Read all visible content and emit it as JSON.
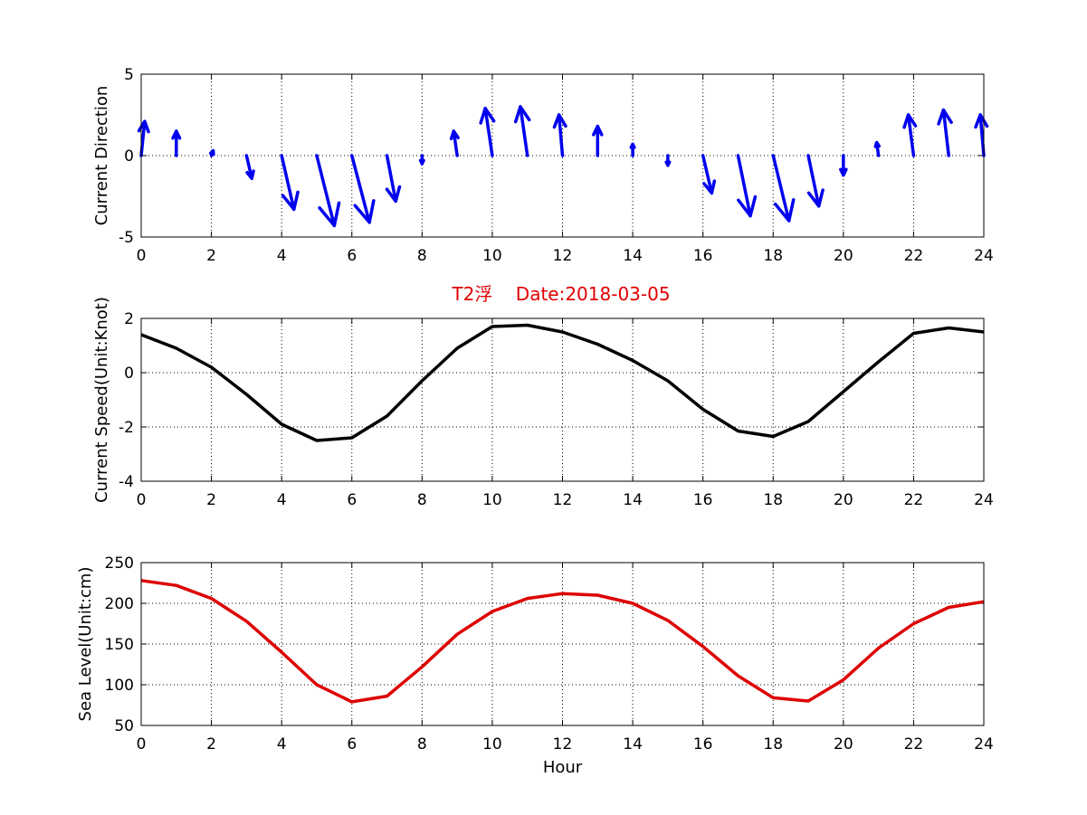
{
  "title": "T2浮    Date:2018-03-05",
  "colors": {
    "arrows": "#0000ee",
    "speed": "#000000",
    "sealevel": "#dd0000",
    "title": "#e00000"
  },
  "chart_data": [
    {
      "type": "quiver",
      "ylabel": "Current Direction",
      "xlabel": "",
      "xlim": [
        0,
        24
      ],
      "ylim": [
        -5,
        5
      ],
      "xticks": [
        "0",
        "2",
        "4",
        "6",
        "8",
        "10",
        "12",
        "14",
        "16",
        "18",
        "20",
        "22",
        "24"
      ],
      "yticks": [
        "-5",
        "0",
        "5"
      ],
      "grid": true,
      "arrows": [
        {
          "x": 0,
          "u": 0.1,
          "v": 2.1
        },
        {
          "x": 1,
          "u": 0.0,
          "v": 1.5
        },
        {
          "x": 2,
          "u": 0.05,
          "v": 0.3
        },
        {
          "x": 3,
          "u": 0.15,
          "v": -1.4
        },
        {
          "x": 4,
          "u": 0.35,
          "v": -3.3
        },
        {
          "x": 5,
          "u": 0.5,
          "v": -4.3
        },
        {
          "x": 6,
          "u": 0.5,
          "v": -4.1
        },
        {
          "x": 7,
          "u": 0.25,
          "v": -2.8
        },
        {
          "x": 8,
          "u": 0.0,
          "v": -0.5
        },
        {
          "x": 9,
          "u": -0.1,
          "v": 1.5
        },
        {
          "x": 10,
          "u": -0.2,
          "v": 2.9
        },
        {
          "x": 11,
          "u": -0.2,
          "v": 3.0
        },
        {
          "x": 12,
          "u": -0.1,
          "v": 2.5
        },
        {
          "x": 13,
          "u": 0.0,
          "v": 1.8
        },
        {
          "x": 14,
          "u": 0.0,
          "v": 0.7
        },
        {
          "x": 15,
          "u": 0.0,
          "v": -0.6
        },
        {
          "x": 16,
          "u": 0.25,
          "v": -2.3
        },
        {
          "x": 17,
          "u": 0.35,
          "v": -3.7
        },
        {
          "x": 18,
          "u": 0.45,
          "v": -4.0
        },
        {
          "x": 19,
          "u": 0.3,
          "v": -3.1
        },
        {
          "x": 20,
          "u": 0.0,
          "v": -1.2
        },
        {
          "x": 21,
          "u": -0.05,
          "v": 0.8
        },
        {
          "x": 22,
          "u": -0.15,
          "v": 2.5
        },
        {
          "x": 23,
          "u": -0.15,
          "v": 2.8
        },
        {
          "x": 24,
          "u": -0.1,
          "v": 2.5
        }
      ]
    },
    {
      "type": "line",
      "ylabel": "Current Speed(Unit:Knot)",
      "xlabel": "",
      "xlim": [
        0,
        24
      ],
      "ylim": [
        -4,
        2
      ],
      "xticks": [
        "0",
        "2",
        "4",
        "6",
        "8",
        "10",
        "12",
        "14",
        "16",
        "18",
        "20",
        "22",
        "24"
      ],
      "yticks": [
        "-4",
        "-2",
        "0",
        "2"
      ],
      "grid": true,
      "x": [
        0,
        1,
        2,
        3,
        4,
        5,
        6,
        7,
        8,
        9,
        10,
        11,
        12,
        13,
        14,
        15,
        16,
        17,
        18,
        19,
        20,
        21,
        22,
        23,
        24
      ],
      "series": [
        {
          "values": [
            1.4,
            0.9,
            0.2,
            -0.8,
            -1.9,
            -2.5,
            -2.4,
            -1.6,
            -0.3,
            0.9,
            1.7,
            1.75,
            1.5,
            1.05,
            0.45,
            -0.3,
            -1.35,
            -2.15,
            -2.35,
            -1.8,
            -0.7,
            0.4,
            1.45,
            1.65,
            1.5
          ]
        }
      ]
    },
    {
      "type": "line",
      "ylabel": "Sea Level(Unit:cm)",
      "xlabel": "Hour",
      "xlim": [
        0,
        24
      ],
      "ylim": [
        50,
        250
      ],
      "xticks": [
        "0",
        "2",
        "4",
        "6",
        "8",
        "10",
        "12",
        "14",
        "16",
        "18",
        "20",
        "22",
        "24"
      ],
      "yticks": [
        "50",
        "100",
        "150",
        "200",
        "250"
      ],
      "grid": true,
      "x": [
        0,
        1,
        2,
        3,
        4,
        5,
        6,
        7,
        8,
        9,
        10,
        11,
        12,
        13,
        14,
        15,
        16,
        17,
        18,
        19,
        20,
        21,
        22,
        23,
        24
      ],
      "series": [
        {
          "values": [
            228,
            222,
            206,
            178,
            140,
            100,
            79,
            86,
            122,
            162,
            190,
            206,
            212,
            210,
            200,
            179,
            147,
            111,
            84,
            80,
            106,
            145,
            175,
            195,
            202
          ]
        }
      ]
    }
  ]
}
